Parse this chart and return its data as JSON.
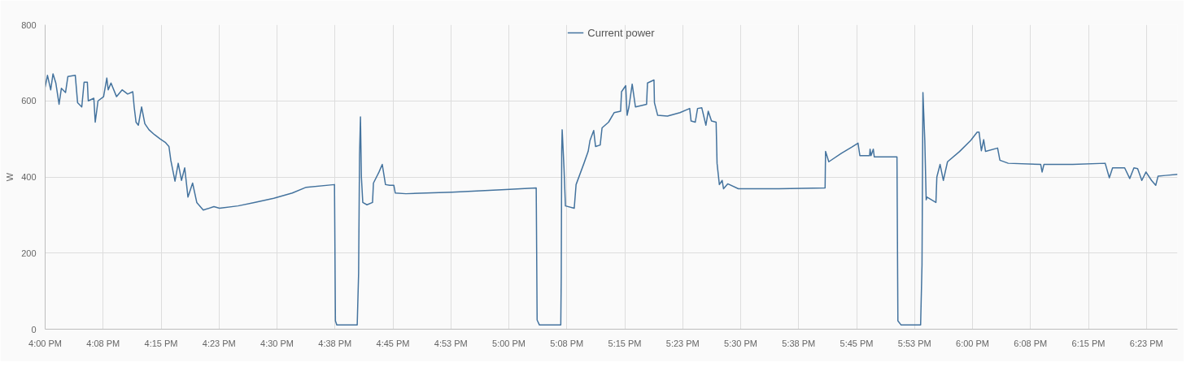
{
  "chart_data": {
    "type": "line",
    "ylabel": "W",
    "legend": "top",
    "grid": true,
    "marker": "none",
    "xlim": [
      16,
      18.442
    ],
    "ylim": [
      0,
      800
    ],
    "yticks": [
      0,
      200,
      400,
      600,
      800
    ],
    "xticks": [
      {
        "value": 16,
        "label": "4:00 PM"
      },
      {
        "value": 16.125,
        "label": "4:08 PM"
      },
      {
        "value": 16.25,
        "label": "4:15 PM"
      },
      {
        "value": 16.375,
        "label": "4:23 PM"
      },
      {
        "value": 16.5,
        "label": "4:30 PM"
      },
      {
        "value": 16.625,
        "label": "4:38 PM"
      },
      {
        "value": 16.75,
        "label": "4:45 PM"
      },
      {
        "value": 16.875,
        "label": "4:53 PM"
      },
      {
        "value": 17,
        "label": "5:00 PM"
      },
      {
        "value": 17.125,
        "label": "5:08 PM"
      },
      {
        "value": 17.25,
        "label": "5:15 PM"
      },
      {
        "value": 17.375,
        "label": "5:23 PM"
      },
      {
        "value": 17.5,
        "label": "5:30 PM"
      },
      {
        "value": 17.625,
        "label": "5:38 PM"
      },
      {
        "value": 17.75,
        "label": "5:45 PM"
      },
      {
        "value": 17.875,
        "label": "5:53 PM"
      },
      {
        "value": 18,
        "label": "6:00 PM"
      },
      {
        "value": 18.125,
        "label": "6:08 PM"
      },
      {
        "value": 18.25,
        "label": "6:15 PM"
      },
      {
        "value": 18.375,
        "label": "6:23 PM"
      }
    ],
    "series": [
      {
        "name": "Current power",
        "color": "#44739e",
        "x": [
          16.0,
          16.005,
          16.012,
          16.017,
          16.023,
          16.03,
          16.035,
          16.044,
          16.049,
          16.065,
          16.07,
          16.079,
          16.084,
          16.091,
          16.093,
          16.105,
          16.108,
          16.114,
          16.126,
          16.133,
          16.136,
          16.142,
          16.154,
          16.166,
          16.178,
          16.189,
          16.192,
          16.196,
          16.201,
          16.208,
          16.215,
          16.224,
          16.236,
          16.248,
          16.259,
          16.267,
          16.271,
          16.28,
          16.287,
          16.294,
          16.301,
          16.308,
          16.318,
          16.327,
          16.341,
          16.364,
          16.376,
          16.416,
          16.451,
          16.493,
          16.533,
          16.563,
          16.624,
          16.626,
          16.629,
          16.673,
          16.676,
          16.678,
          16.68,
          16.682,
          16.685,
          16.694,
          16.706,
          16.708,
          16.72,
          16.727,
          16.734,
          16.743,
          16.752,
          16.755,
          16.778,
          16.877,
          16.993,
          17.059,
          17.061,
          17.066,
          17.112,
          17.113,
          17.114,
          17.115,
          17.119,
          17.122,
          17.141,
          17.145,
          17.162,
          17.171,
          17.175,
          17.183,
          17.187,
          17.197,
          17.201,
          17.215,
          17.227,
          17.241,
          17.243,
          17.252,
          17.255,
          17.259,
          17.266,
          17.273,
          17.297,
          17.299,
          17.313,
          17.314,
          17.321,
          17.342,
          17.369,
          17.39,
          17.393,
          17.402,
          17.407,
          17.416,
          17.425,
          17.43,
          17.437,
          17.447,
          17.449,
          17.454,
          17.46,
          17.463,
          17.472,
          17.495,
          17.582,
          17.682,
          17.683,
          17.69,
          17.717,
          17.739,
          17.753,
          17.757,
          17.778,
          17.779,
          17.781,
          17.786,
          17.788,
          17.837,
          17.839,
          17.846,
          17.888,
          17.891,
          17.893,
          17.897,
          17.9,
          17.902,
          17.921,
          17.923,
          17.93,
          17.937,
          17.946,
          17.972,
          17.996,
          18.01,
          18.014,
          18.019,
          18.024,
          18.028,
          18.054,
          18.059,
          18.077,
          18.147,
          18.15,
          18.154,
          18.216,
          18.286,
          18.295,
          18.302,
          18.328,
          18.339,
          18.348,
          18.356,
          18.365,
          18.374,
          18.386,
          18.395,
          18.4,
          18.416,
          18.442
        ],
        "values": [
          636,
          667,
          629,
          671,
          647,
          591,
          633,
          622,
          664,
          667,
          595,
          584,
          649,
          649,
          600,
          607,
          544,
          600,
          611,
          660,
          629,
          647,
          611,
          629,
          618,
          624,
          584,
          544,
          536,
          584,
          540,
          524,
          511,
          500,
          491,
          480,
          444,
          389,
          436,
          391,
          424,
          347,
          384,
          333,
          313,
          322,
          318,
          324,
          333,
          344,
          358,
          373,
          380,
          22,
          11,
          11,
          147,
          458,
          558,
          400,
          333,
          327,
          333,
          384,
          413,
          433,
          380,
          378,
          378,
          358,
          356,
          360,
          367,
          371,
          24,
          11,
          11,
          140,
          467,
          524,
          422,
          324,
          318,
          380,
          436,
          467,
          496,
          522,
          480,
          484,
          529,
          544,
          569,
          573,
          624,
          640,
          562,
          584,
          644,
          584,
          591,
          647,
          655,
          595,
          562,
          560,
          569,
          580,
          547,
          544,
          580,
          582,
          536,
          573,
          547,
          544,
          436,
          380,
          391,
          369,
          382,
          369,
          369,
          371,
          467,
          440,
          462,
          478,
          489,
          456,
          456,
          473,
          456,
          473,
          453,
          453,
          22,
          11,
          11,
          169,
          622,
          496,
          340,
          347,
          333,
          400,
          433,
          391,
          440,
          467,
          496,
          518,
          518,
          469,
          498,
          467,
          476,
          444,
          436,
          433,
          413,
          433,
          433,
          436,
          398,
          424,
          424,
          396,
          424,
          422,
          391,
          413,
          391,
          378,
          402,
          404,
          407
        ]
      }
    ]
  }
}
